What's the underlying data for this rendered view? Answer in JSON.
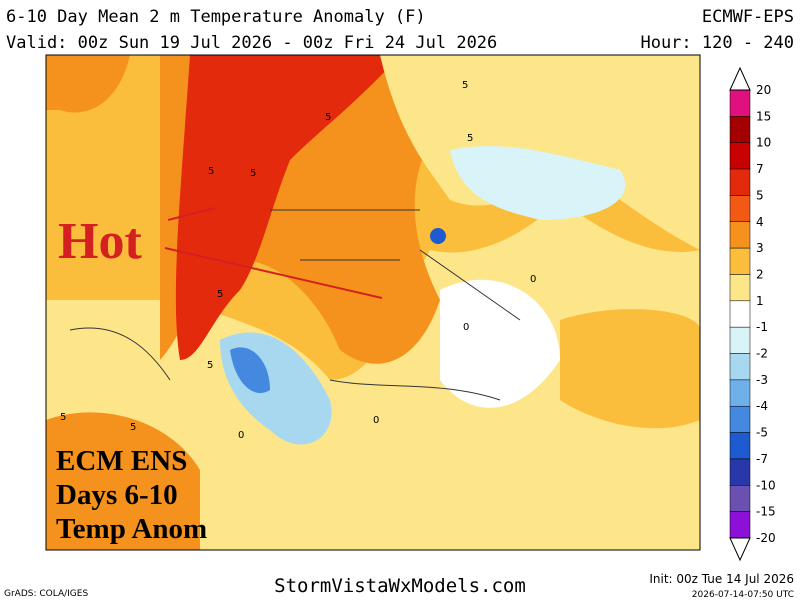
{
  "header": {
    "title": "6-10 Day Mean 2 m Temperature Anomaly (F)",
    "model": "ECMWF-EPS",
    "valid": "Valid: 00z Sun 19 Jul 2026 - 00z Fri 24 Jul 2026",
    "hour": "Hour: 120 - 240"
  },
  "map": {
    "annotation": "Hot",
    "overlay": [
      "ECM ENS",
      "Days 6-10",
      "Temp Anom"
    ],
    "contour_labels": [
      "5",
      "5",
      "5",
      "5",
      "5",
      "5",
      "5",
      "5",
      "0",
      "0",
      "0",
      "0",
      "5"
    ]
  },
  "legend": {
    "levels": [
      20,
      15,
      10,
      7,
      5,
      4,
      3,
      2,
      1,
      -1,
      -2,
      -3,
      -4,
      -5,
      -7,
      -10,
      -15,
      -20
    ],
    "colors": [
      "#e0107e",
      "#a50000",
      "#c80000",
      "#e42a0c",
      "#f05a14",
      "#f5921e",
      "#fbbd3c",
      "#fde68a",
      "#ffffff",
      "#d8f4f8",
      "#a8d8f0",
      "#70b0ea",
      "#4488e0",
      "#1e5ad0",
      "#2838a8",
      "#6a50b0",
      "#8c10d8"
    ]
  },
  "footer": {
    "grads": "GrADS: COLA/IGES",
    "site": "StormVistaWxModels.com",
    "init": "Init: 00z Tue 14 Jul 2026",
    "stamp": "2026-07-14-07:50 UTC"
  }
}
